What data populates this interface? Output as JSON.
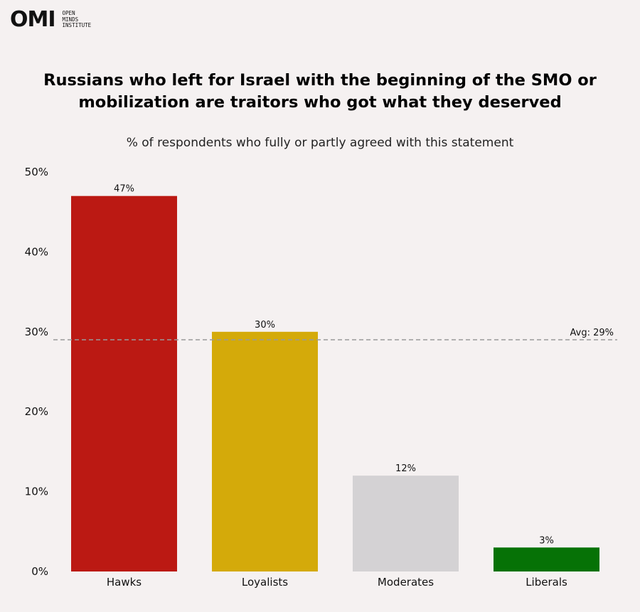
{
  "brand": {
    "mark": "OMI",
    "name_lines": [
      "OPEN",
      "MINDS",
      "INSTITUTE"
    ]
  },
  "chart_data": {
    "type": "bar",
    "title_lines": [
      "Russians who left for Israel with the beginning of the SMO or",
      "mobilization are traitors who got what they deserved"
    ],
    "subtitle": "% of respondents who fully or partly agreed with this statement",
    "categories": [
      "Hawks",
      "Loyalists",
      "Moderates",
      "Liberals"
    ],
    "values": [
      47,
      30,
      12,
      3
    ],
    "value_labels": [
      "47%",
      "30%",
      "12%",
      "3%"
    ],
    "colors": [
      "#bb1913",
      "#d4aa0a",
      "#d4d2d4",
      "#067206"
    ],
    "ylim": [
      0,
      50
    ],
    "yticks": [
      0,
      10,
      20,
      30,
      40,
      50
    ],
    "ytick_labels": [
      "0%",
      "10%",
      "20%",
      "30%",
      "40%",
      "50%"
    ],
    "average": {
      "value": 29,
      "label": "Avg: 29%",
      "color": "#999999"
    },
    "grid": false,
    "legend": "none"
  }
}
